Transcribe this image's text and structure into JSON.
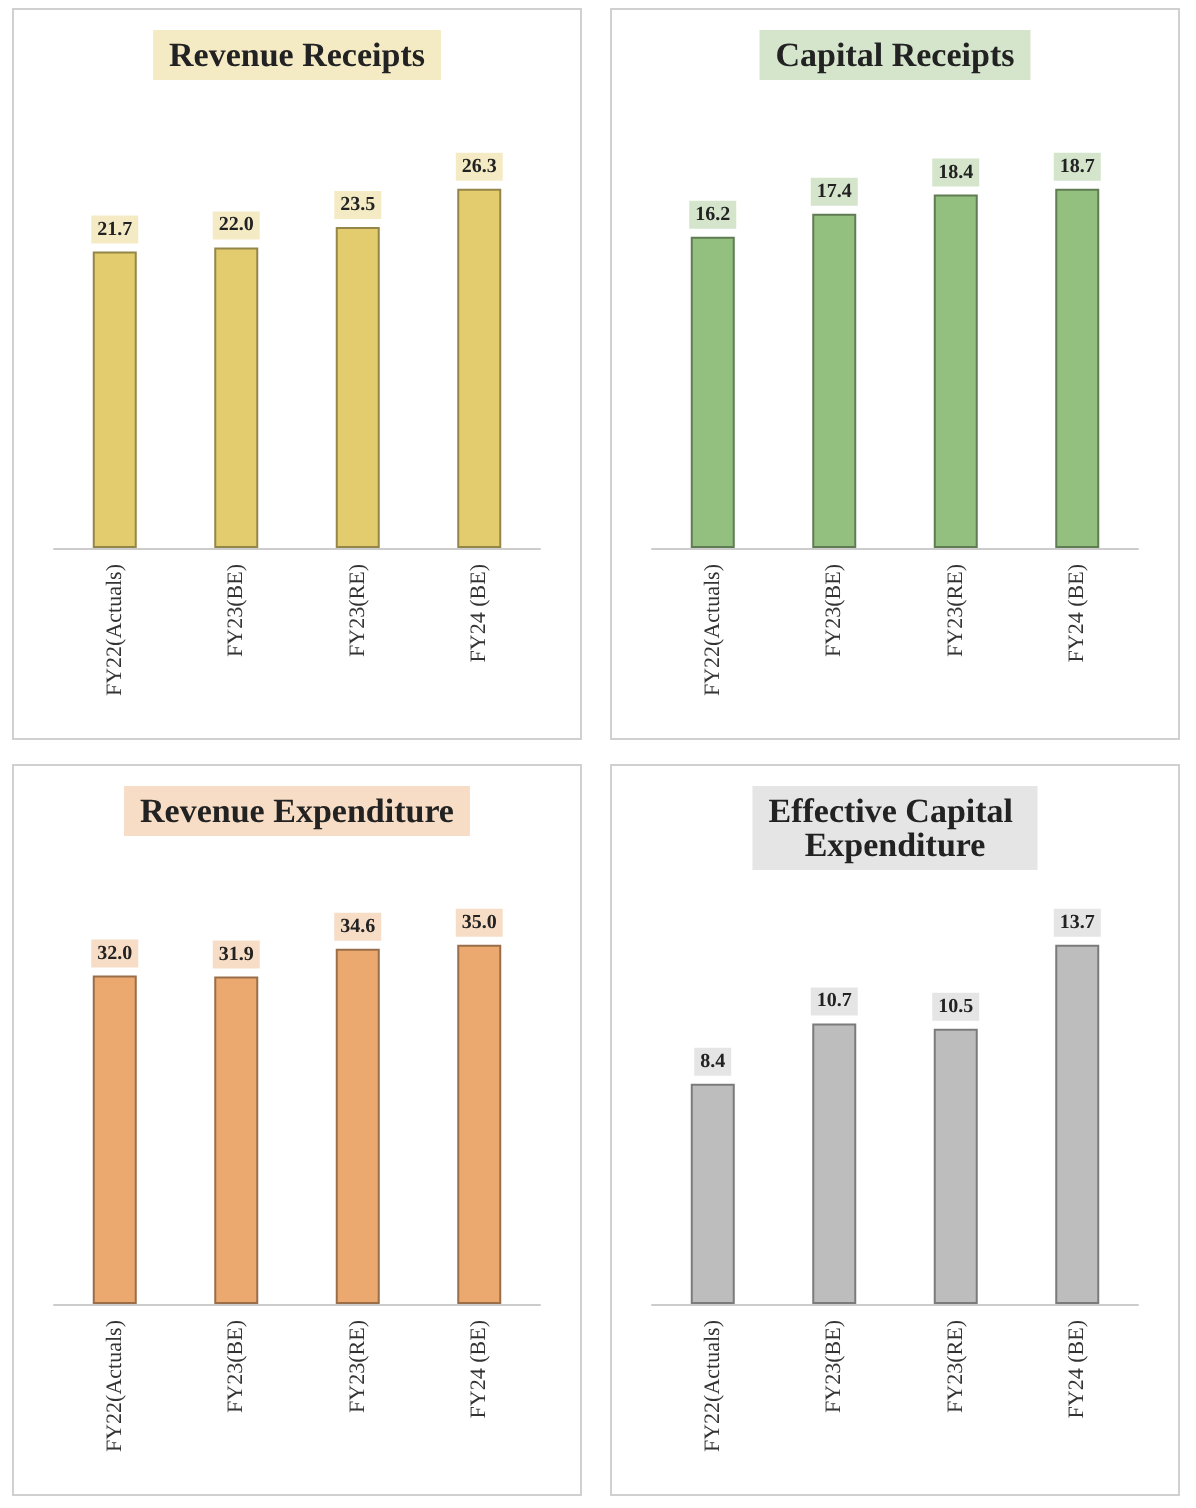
{
  "chart_data": [
    {
      "type": "bar",
      "title": "Revenue Receipts",
      "categories": [
        "FY22(Actuals)",
        "FY23(BE)",
        "FY23(RE)",
        "FY24 (BE)"
      ],
      "values": [
        21.7,
        22.0,
        23.5,
        26.3
      ],
      "value_labels": [
        "21.7",
        "22.0",
        "23.5",
        "26.3"
      ],
      "color": "#e3cc6e"
    },
    {
      "type": "bar",
      "title": "Capital Receipts",
      "categories": [
        "FY22(Actuals)",
        "FY23(BE)",
        "FY23(RE)",
        "FY24 (BE)"
      ],
      "values": [
        16.2,
        17.4,
        18.4,
        18.7
      ],
      "value_labels": [
        "16.2",
        "17.4",
        "18.4",
        "18.7"
      ],
      "color": "#93bf7f"
    },
    {
      "type": "bar",
      "title": "Revenue Expenditure",
      "categories": [
        "FY22(Actuals)",
        "FY23(BE)",
        "FY23(RE)",
        "FY24 (BE)"
      ],
      "values": [
        32.0,
        31.9,
        34.6,
        35.0
      ],
      "value_labels": [
        "32.0",
        "31.9",
        "34.6",
        "35.0"
      ],
      "color": "#eba96f"
    },
    {
      "type": "bar",
      "title": "Effective Capital Expenditure",
      "categories": [
        "FY22(Actuals)",
        "FY23(BE)",
        "FY23(RE)",
        "FY24 (BE)"
      ],
      "values": [
        8.4,
        10.7,
        10.5,
        13.7
      ],
      "value_labels": [
        "8.4",
        "10.7",
        "10.5",
        "13.7"
      ],
      "color": "#bdbdbd"
    }
  ]
}
